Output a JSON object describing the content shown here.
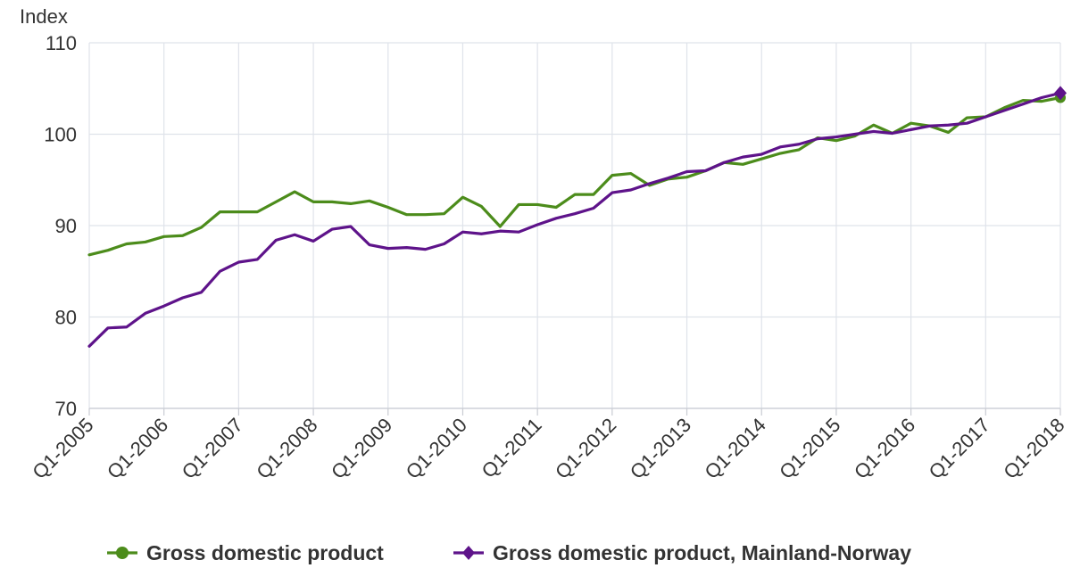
{
  "chart_data": {
    "type": "line",
    "ylabel": "Index",
    "ylim": [
      70,
      110
    ],
    "yticks": [
      70,
      80,
      90,
      100,
      110
    ],
    "grid": true,
    "legend_position": "bottom-center",
    "x_tick_labels": [
      "Q1-2005",
      "Q1-2006",
      "Q1-2007",
      "Q1-2008",
      "Q1-2009",
      "Q1-2010",
      "Q1-2011",
      "Q1-2012",
      "Q1-2013",
      "Q1-2014",
      "Q1-2015",
      "Q1-2016",
      "Q1-2017",
      "Q1-2018"
    ],
    "x": [
      "Q1-2005",
      "Q2-2005",
      "Q3-2005",
      "Q4-2005",
      "Q1-2006",
      "Q2-2006",
      "Q3-2006",
      "Q4-2006",
      "Q1-2007",
      "Q2-2007",
      "Q3-2007",
      "Q4-2007",
      "Q1-2008",
      "Q2-2008",
      "Q3-2008",
      "Q4-2008",
      "Q1-2009",
      "Q2-2009",
      "Q3-2009",
      "Q4-2009",
      "Q1-2010",
      "Q2-2010",
      "Q3-2010",
      "Q4-2010",
      "Q1-2011",
      "Q2-2011",
      "Q3-2011",
      "Q4-2011",
      "Q1-2012",
      "Q2-2012",
      "Q3-2012",
      "Q4-2012",
      "Q1-2013",
      "Q2-2013",
      "Q3-2013",
      "Q4-2013",
      "Q1-2014",
      "Q2-2014",
      "Q3-2014",
      "Q4-2014",
      "Q1-2015",
      "Q2-2015",
      "Q3-2015",
      "Q4-2015",
      "Q1-2016",
      "Q2-2016",
      "Q3-2016",
      "Q4-2016",
      "Q1-2017",
      "Q2-2017",
      "Q3-2017",
      "Q4-2017",
      "Q1-2018"
    ],
    "series": [
      {
        "name": "Gross domestic product",
        "color": "#4c8c1b",
        "marker": "circle",
        "values": [
          86.8,
          87.3,
          88.0,
          88.2,
          88.8,
          88.9,
          89.8,
          91.5,
          91.5,
          91.5,
          92.6,
          93.7,
          92.6,
          92.6,
          92.4,
          92.7,
          92.0,
          91.2,
          91.2,
          91.3,
          93.1,
          92.1,
          89.9,
          92.3,
          92.3,
          92.0,
          93.4,
          93.4,
          95.5,
          95.7,
          94.4,
          95.1,
          95.3,
          96.0,
          96.9,
          96.7,
          97.3,
          97.9,
          98.3,
          99.6,
          99.3,
          99.8,
          101.0,
          100.1,
          101.2,
          100.9,
          100.2,
          101.8,
          101.9,
          102.9,
          103.7,
          103.6,
          104.0
        ]
      },
      {
        "name": "Gross domestic product, Mainland-Norway",
        "color": "#5e138a",
        "marker": "diamond",
        "values": [
          76.8,
          78.8,
          78.9,
          80.4,
          81.2,
          82.1,
          82.7,
          85.0,
          86.0,
          86.3,
          88.4,
          89.0,
          88.3,
          89.6,
          89.9,
          87.9,
          87.5,
          87.6,
          87.4,
          88.0,
          89.3,
          89.1,
          89.4,
          89.3,
          90.1,
          90.8,
          91.3,
          91.9,
          93.6,
          93.9,
          94.6,
          95.2,
          95.9,
          96.0,
          96.9,
          97.5,
          97.8,
          98.6,
          98.9,
          99.5,
          99.7,
          100.0,
          100.3,
          100.1,
          100.5,
          100.9,
          101.0,
          101.2,
          101.9,
          102.6,
          103.3,
          104.0,
          104.5
        ]
      }
    ]
  }
}
